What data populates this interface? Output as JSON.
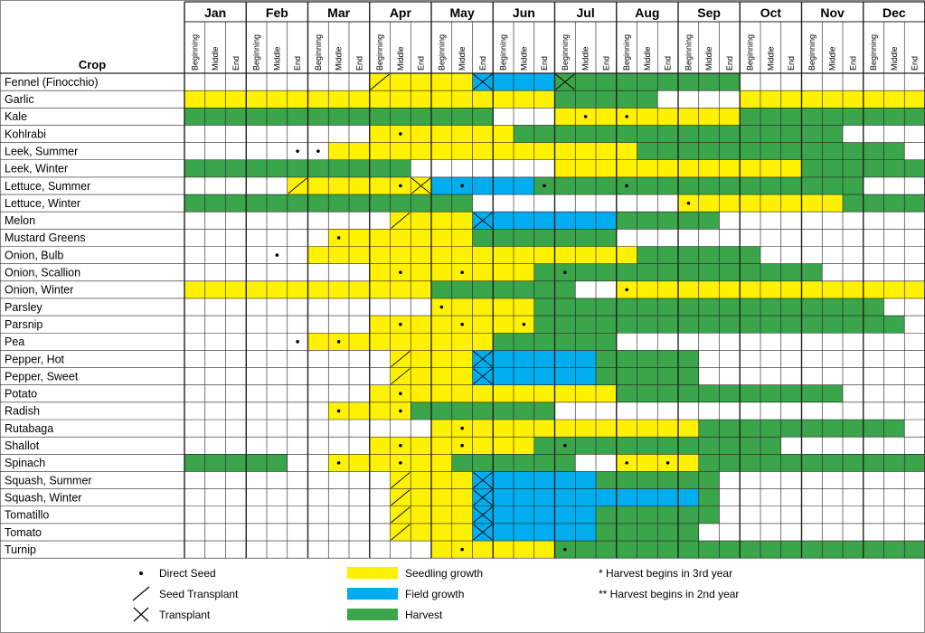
{
  "chart_data": {
    "type": "table",
    "title": "Crop",
    "months": [
      "Jan",
      "Feb",
      "Mar",
      "Apr",
      "May",
      "Jun",
      "Jul",
      "Aug",
      "Sep",
      "Oct",
      "Nov",
      "Dec"
    ],
    "phases": [
      "Beginning",
      "Middle",
      "End"
    ],
    "rows": [
      {
        "crop": "Fennel (Finocchio)",
        "cells": "WWWWWWWWWYYYYYBBBBGGGGGGGGGWWWWWWWWW",
        "marks": {
          "9": "S",
          "14": "T",
          "18": "T"
        }
      },
      {
        "crop": "Garlic",
        "cells": "YYYYYYYYYYYYYYYYYYGGGGGWWWWYYYYYYYYY",
        "marks": {}
      },
      {
        "crop": "Kale",
        "cells": "GGGGGGGGGGGGGGGWWWYYYYYYYYYGGGGGGGGG",
        "marks": {
          "19": "D",
          "21": "D"
        }
      },
      {
        "crop": "Kohlrabi",
        "cells": "WWWWWWWWWYYYYYYYGGGGGGGGGGGGGGGGWWWW",
        "marks": {
          "10": "D"
        }
      },
      {
        "crop": "Leek, Summer",
        "cells": "WWWWWWWYYYYYYYYYYYYYYYGGGGGGGGGGGGGW",
        "marks": {
          "5": "D",
          "6": "D"
        }
      },
      {
        "crop": "Leek, Winter",
        "cells": "GGGGGGGGGGGWWWWWWWYYYYYYYYYYYYGGGGGG",
        "marks": {}
      },
      {
        "crop": "Lettuce, Summer",
        "cells": "WWWWWYYYYYYYBBBBBGGGGGGGGGGGGGGGGWWW",
        "marks": {
          "5": "S",
          "10": "D",
          "11": "T",
          "13": "D",
          "17": "D",
          "21": "D"
        }
      },
      {
        "crop": "Lettuce, Winter",
        "cells": "GGGGGGGGGGGGGGWWWWWWWWWWYYYYYYYYGGGG",
        "marks": {
          "24": "D"
        }
      },
      {
        "crop": "Melon",
        "cells": "WWWWWWWWWWYYYYBBBBBBBGGGGGWWWWWWWWWW",
        "marks": {
          "10": "S",
          "14": "T"
        }
      },
      {
        "crop": "Mustard Greens",
        "cells": "WWWWWWWYYYYYYYGGGGGGGWWWWWWWWWWWWWWW",
        "marks": {
          "7": "D"
        }
      },
      {
        "crop": "Onion, Bulb",
        "cells": "WWWWWWYYYYYYYYYYYYYYYYGGGGGGWWWWWWWW",
        "marks": {
          "4": "D"
        }
      },
      {
        "crop": "Onion, Scallion",
        "cells": "WWWWWWWWWYYYYYYYYGGGGGGGGGGGGGGWWWWW",
        "marks": {
          "10": "D",
          "13": "D",
          "18": "D"
        }
      },
      {
        "crop": "Onion, Winter",
        "cells": "YYYYYYYYYYYYGGGGGGGWWYYYYYYYYYYYYYYY",
        "marks": {
          "21": "D"
        }
      },
      {
        "crop": "Parsley",
        "cells": "WWWWWWWWWWWWYYYYYGGGGGGGGGGGGGGGGGWW",
        "marks": {
          "12": "D"
        }
      },
      {
        "crop": "Parsnip",
        "cells": "WWWWWWWWWYYYYYYYYGGGGGGGGGGGGGGGGGGW",
        "marks": {
          "10": "D",
          "13": "D",
          "16": "D"
        }
      },
      {
        "crop": "Pea",
        "cells": "WWWWWWYYYYYYYYYGGGGGGWWWWWWWWWWWWWWW",
        "marks": {
          "5": "D",
          "7": "D"
        }
      },
      {
        "crop": "Pepper, Hot",
        "cells": "WWWWWWWWWWYYYYBBBBBBGGGGGWWWWWWWWWWW",
        "marks": {
          "10": "S",
          "14": "T"
        }
      },
      {
        "crop": "Pepper, Sweet",
        "cells": "WWWWWWWWWWYYYYBBBBBBGGGGGWWWWWWWWWWW",
        "marks": {
          "10": "S",
          "14": "T"
        }
      },
      {
        "crop": "Potato",
        "cells": "WWWWWWWWWYYYYYYYYYYYYGGGGGGGGGGGWWWW",
        "marks": {
          "10": "D"
        }
      },
      {
        "crop": "Radish",
        "cells": "WWWWWWWYYYYGGGGGGGWWWWWWWWWWWWWWWWWW",
        "marks": {
          "7": "D",
          "10": "D"
        }
      },
      {
        "crop": "Rutabaga",
        "cells": "WWWWWWWWWWWWYYYYYYYYYYYYYGGGGGGGGGGW",
        "marks": {
          "13": "D"
        }
      },
      {
        "crop": "Shallot",
        "cells": "WWWWWWWWWYYYYYYYYGGGGGGGGGGGGWWWWWWW",
        "marks": {
          "10": "D",
          "13": "D",
          "18": "D"
        }
      },
      {
        "crop": "Spinach",
        "cells": "GGGGGWWYYYYYYGGGGGGWWYYYYGGGGGGGGGGG",
        "marks": {
          "7": "D",
          "10": "D",
          "21": "D",
          "23": "D"
        }
      },
      {
        "crop": "Squash, Summer",
        "cells": "WWWWWWWWWWYYYYBBBBBBGGGGGGWWWWWWWWWW",
        "marks": {
          "10": "S",
          "14": "T"
        }
      },
      {
        "crop": "Squash, Winter",
        "cells": "WWWWWWWWWWYYYYBBBBBBBBBBBGWWWWWWWWWW",
        "marks": {
          "10": "S",
          "14": "T"
        }
      },
      {
        "crop": "Tomatillo",
        "cells": "WWWWWWWWWWYYYYBBBBBBGGGGGGWWWWWWWWWW",
        "marks": {
          "10": "S",
          "14": "T"
        }
      },
      {
        "crop": "Tomato",
        "cells": "WWWWWWWWWWYYYYBBBBBBGGGGGWWWWWWWWWWW",
        "marks": {
          "10": "S",
          "14": "T"
        }
      },
      {
        "crop": "Turnip",
        "cells": "WWWWWWWWWWWWYYYYYYGGGGGGGGGGGGGGGGGG",
        "marks": {
          "13": "D",
          "18": "D"
        }
      }
    ],
    "legend": {
      "symbols": [
        {
          "key": "D",
          "label": "Direct Seed"
        },
        {
          "key": "S",
          "label": "Seed Transplant"
        },
        {
          "key": "T",
          "label": "Transplant"
        }
      ],
      "colors": [
        {
          "key": "Y",
          "label": "Seedling growth",
          "color": "#fff200"
        },
        {
          "key": "B",
          "label": "Field growth",
          "color": "#00aeef"
        },
        {
          "key": "G",
          "label": "Harvest",
          "color": "#3aa54a"
        }
      ],
      "notes": [
        "* Harvest begins in 3rd year",
        "** Harvest begins in 2nd year"
      ]
    },
    "colors": {
      "W": "#ffffff",
      "Y": "#fff200",
      "B": "#00aeef",
      "G": "#3aa54a",
      "grid": "#231f20"
    }
  }
}
